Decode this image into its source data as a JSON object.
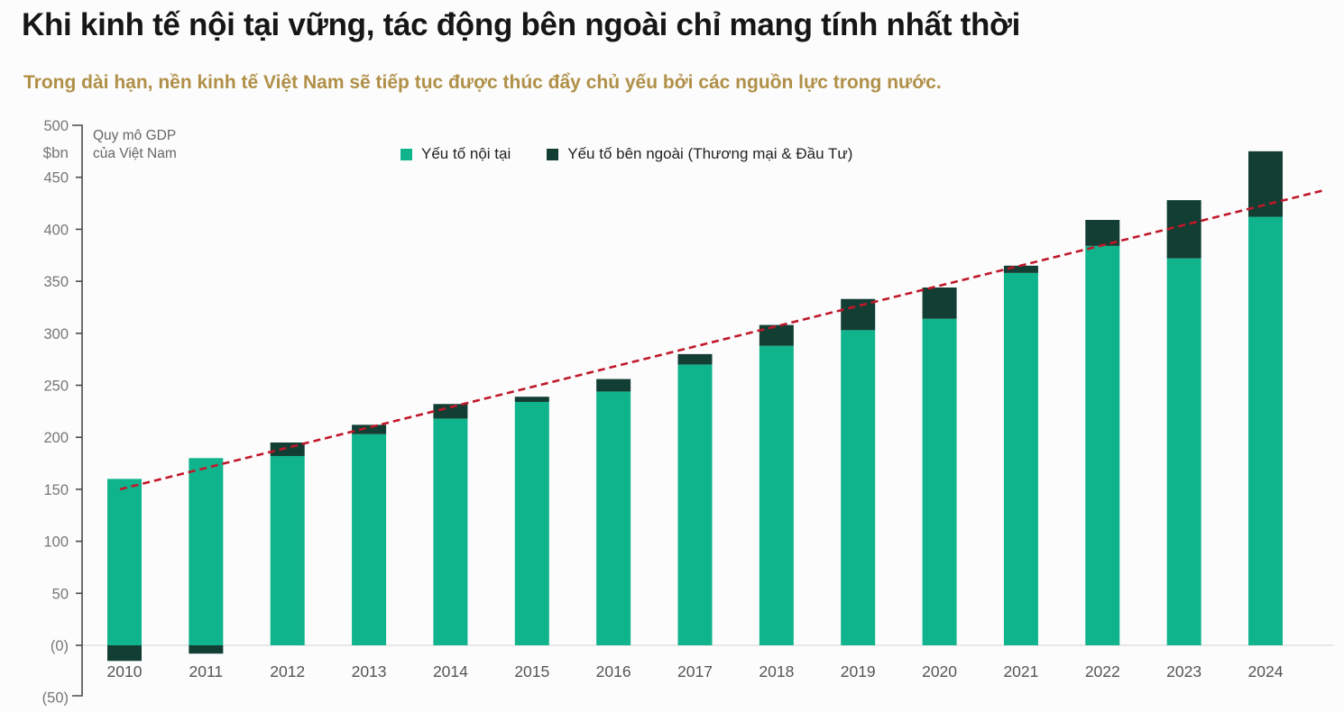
{
  "header": {
    "title": "Khi kinh tế nội tại vững, tác động bên ngoài chỉ mang tính nhất thời",
    "subtitle": "Trong dài hạn, nền kinh tế Việt Nam sẽ tiếp tục được thúc đẩy chủ yếu bởi các nguồn lực trong nước."
  },
  "axis_note": {
    "line1": "Quy mô GDP",
    "line2": "của Việt Nam"
  },
  "unit_label": "$bn",
  "legend": [
    {
      "label": "Yếu tố nội tại",
      "color": "#10b48c"
    },
    {
      "label": "Yếu tố bên ngoài (Thương mại & Đầu Tư)",
      "color": "#123e33"
    }
  ],
  "chart_data": {
    "type": "bar",
    "stacked": true,
    "title": "Quy mô GDP của Việt Nam ($bn)",
    "categories": [
      "2010",
      "2011",
      "2012",
      "2013",
      "2014",
      "2015",
      "2016",
      "2017",
      "2018",
      "2019",
      "2020",
      "2021",
      "2022",
      "2023",
      "2024"
    ],
    "series": [
      {
        "name": "Yếu tố nội tại",
        "color": "#10b48c",
        "values": [
          160,
          180,
          182,
          203,
          218,
          234,
          244,
          270,
          288,
          303,
          314,
          358,
          384,
          372,
          412
        ]
      },
      {
        "name": "Yếu tố bên ngoài (Thương mại & Đầu Tư)",
        "color": "#123e33",
        "values": [
          -15,
          -8,
          13,
          9,
          14,
          5,
          12,
          10,
          20,
          30,
          30,
          7,
          25,
          56,
          63
        ]
      }
    ],
    "totals": [
      145,
      172,
      195,
      212,
      232,
      239,
      256,
      280,
      308,
      333,
      344,
      365,
      409,
      428,
      475
    ],
    "ylabel": "$bn",
    "ylim": [
      -50,
      500
    ],
    "ytick_step": 50,
    "ytick_labels": [
      "500",
      "450",
      "400",
      "350",
      "300",
      "250",
      "200",
      "150",
      "100",
      "50",
      "(0)",
      "(50)"
    ],
    "grid": "zero-line-only",
    "legend_position": "top",
    "trend": {
      "style": "dashed",
      "color": "#c0182b",
      "start": {
        "year": "2010",
        "value": 150
      },
      "end": {
        "year": "2024",
        "value": 425
      },
      "extends_to_value": 438
    }
  }
}
